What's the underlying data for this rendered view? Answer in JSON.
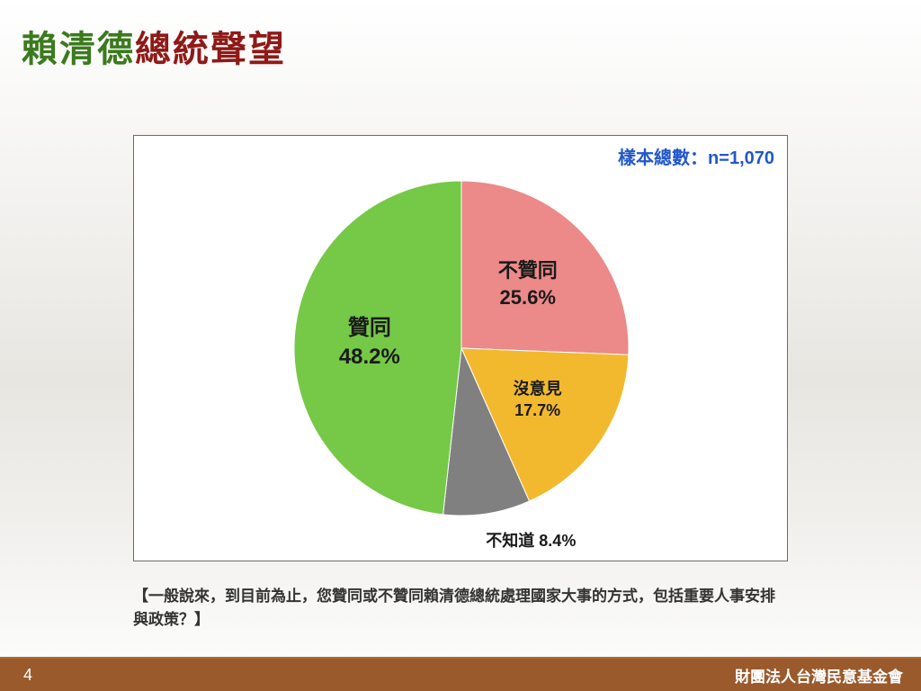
{
  "title": {
    "part1": "賴清德",
    "part2": "總統聲望"
  },
  "chart": {
    "type": "pie",
    "sample_label": "樣本總數：n=1,070",
    "background_color": "#ffffff",
    "border_color": "#6b6b6b",
    "slice_stroke": "#ffffff",
    "slices": [
      {
        "key": "disapprove",
        "label": "不贊同",
        "value": 25.6,
        "percent_text": "25.6%",
        "color": "#ec8989",
        "label_fontsize": 22
      },
      {
        "key": "no_opinion",
        "label": "沒意見",
        "value": 17.7,
        "percent_text": "17.7%",
        "color": "#f2b92e",
        "label_fontsize": 18
      },
      {
        "key": "dont_know",
        "label": "不知道",
        "value": 8.4,
        "percent_text": "8.4%",
        "color": "#808080",
        "label_fontsize": 18,
        "outside": true
      },
      {
        "key": "approve",
        "label": "贊同",
        "value": 48.2,
        "percent_text": "48.2%",
        "color": "#76c847",
        "label_fontsize": 24
      }
    ],
    "start_angle_deg": 0,
    "radius": 186
  },
  "question": "【一般說來，到目前為止，您贊同或不贊同賴清德總統處理國家大事的方式，包括重要人事安排與政策？】",
  "footer": {
    "page": "4",
    "org": "財團法人台灣民意基金會",
    "bg": "#9a5a2c"
  }
}
